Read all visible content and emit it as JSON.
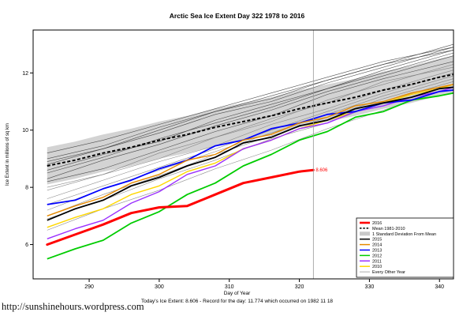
{
  "page": {
    "title": "Arctic Sea Ice Extent Day 322 1978 to 2016",
    "xlabel": "Day of Year",
    "ylabel": "Ice Extent in millions of sq km",
    "footer": "Today's Ice Extent: 8.606  - Record for the day: 11.774 which occurred on 1982 11 18",
    "watermark": "http://sunshinehours.wordpress.com"
  },
  "chart_data": {
    "type": "line",
    "title": "Arctic Sea Ice Extent Day 322 1978 to 2016",
    "xlabel": "Day of Year",
    "ylabel": "Ice Extent in millions of sq km",
    "xlim": [
      282,
      342
    ],
    "ylim": [
      4.8,
      13.5
    ],
    "xticks": [
      290,
      300,
      310,
      320,
      330,
      340
    ],
    "yticks": [
      6,
      8,
      10,
      12
    ],
    "grid": false,
    "legend_position": "bottom-right",
    "vline_x": 322,
    "annotation": {
      "text": "8.606",
      "x": 322,
      "y": 8.606,
      "color": "#ff0000"
    },
    "std_dev": 0.65,
    "band_color": "#d3d3d3",
    "mean": {
      "name": "Mean 1981-2010",
      "color": "#000000",
      "dashed": true,
      "x": [
        284,
        288,
        292,
        296,
        300,
        304,
        308,
        312,
        316,
        320,
        324,
        328,
        332,
        336,
        340,
        342
      ],
      "values": [
        8.75,
        8.95,
        9.2,
        9.4,
        9.65,
        9.85,
        10.1,
        10.3,
        10.5,
        10.75,
        10.95,
        11.15,
        11.4,
        11.6,
        11.85,
        11.95
      ]
    },
    "series": [
      {
        "name": "2010",
        "color": "#ffd700",
        "width": 1.4,
        "x": [
          284,
          288,
          292,
          296,
          300,
          304,
          308,
          312,
          316,
          320,
          324,
          328,
          332,
          336,
          340,
          342
        ],
        "values": [
          6.6,
          6.95,
          7.25,
          7.75,
          8.05,
          8.55,
          8.85,
          9.35,
          9.65,
          10.05,
          10.35,
          10.65,
          10.95,
          11.25,
          11.45,
          11.6
        ]
      },
      {
        "name": "2011",
        "color": "#9b30ff",
        "width": 1.4,
        "x": [
          284,
          288,
          292,
          296,
          300,
          304,
          308,
          312,
          316,
          320,
          324,
          328,
          332,
          336,
          340,
          342
        ],
        "values": [
          6.2,
          6.55,
          6.85,
          7.45,
          7.85,
          8.45,
          8.75,
          9.35,
          9.65,
          10.05,
          10.25,
          10.65,
          10.85,
          11.15,
          11.35,
          11.5
        ]
      },
      {
        "name": "2012",
        "color": "#00cc00",
        "width": 1.8,
        "x": [
          284,
          288,
          292,
          296,
          300,
          304,
          308,
          312,
          316,
          320,
          324,
          328,
          332,
          336,
          340,
          342
        ],
        "values": [
          5.5,
          5.85,
          6.15,
          6.75,
          7.15,
          7.75,
          8.15,
          8.75,
          9.15,
          9.65,
          9.95,
          10.45,
          10.65,
          11.05,
          11.2,
          11.3
        ]
      },
      {
        "name": "2013",
        "color": "#0000ff",
        "width": 1.8,
        "x": [
          284,
          288,
          292,
          296,
          300,
          304,
          308,
          312,
          316,
          320,
          324,
          328,
          332,
          336,
          340,
          342
        ],
        "values": [
          7.4,
          7.55,
          7.95,
          8.25,
          8.65,
          8.95,
          9.45,
          9.65,
          10.05,
          10.25,
          10.55,
          10.65,
          10.95,
          11.05,
          11.35,
          11.4
        ]
      },
      {
        "name": "2014",
        "color": "#e68a00",
        "width": 1.4,
        "x": [
          284,
          288,
          292,
          296,
          300,
          304,
          308,
          312,
          316,
          320,
          324,
          328,
          332,
          336,
          340,
          342
        ],
        "values": [
          7.0,
          7.35,
          7.65,
          8.15,
          8.45,
          8.95,
          9.15,
          9.65,
          9.85,
          10.25,
          10.45,
          10.85,
          11.0,
          11.3,
          11.5,
          11.6
        ]
      },
      {
        "name": "2015",
        "color": "#000000",
        "width": 1.8,
        "x": [
          284,
          288,
          292,
          296,
          300,
          304,
          308,
          312,
          316,
          320,
          324,
          328,
          332,
          336,
          340,
          342
        ],
        "values": [
          6.85,
          7.25,
          7.55,
          8.05,
          8.35,
          8.75,
          9.05,
          9.55,
          9.75,
          10.15,
          10.35,
          10.75,
          10.95,
          11.15,
          11.45,
          11.5
        ]
      },
      {
        "name": "2016",
        "color": "#ff0000",
        "width": 3,
        "x": [
          284,
          288,
          292,
          296,
          300,
          304,
          308,
          312,
          316,
          320,
          322
        ],
        "values": [
          6.0,
          6.35,
          6.7,
          7.1,
          7.3,
          7.35,
          7.75,
          8.15,
          8.35,
          8.55,
          8.606
        ]
      }
    ],
    "background_series": {
      "name": "Every Other Year",
      "color": "#555555",
      "x": [
        284,
        292,
        300,
        308,
        316,
        324,
        332,
        342
      ],
      "lines": [
        [
          8.3,
          8.95,
          9.5,
          10.15,
          10.7,
          11.35,
          11.9,
          12.6
        ],
        [
          8.0,
          8.45,
          9.2,
          9.75,
          10.3,
          11.05,
          11.6,
          12.3
        ],
        [
          8.6,
          9.15,
          9.6,
          10.35,
          10.9,
          11.45,
          12.1,
          12.8
        ],
        [
          7.6,
          8.25,
          8.9,
          9.45,
          10.2,
          10.75,
          11.4,
          12.1
        ],
        [
          8.9,
          9.35,
          10.0,
          10.65,
          11.1,
          11.75,
          12.3,
          13.0
        ],
        [
          7.2,
          7.95,
          8.6,
          9.25,
          9.9,
          10.55,
          11.2,
          11.9
        ],
        [
          8.2,
          8.65,
          9.3,
          9.95,
          10.5,
          11.25,
          11.8,
          12.4
        ],
        [
          7.9,
          8.45,
          9.0,
          9.75,
          10.4,
          10.95,
          11.7,
          12.2
        ],
        [
          9.2,
          9.65,
          10.2,
          10.75,
          11.3,
          11.85,
          12.4,
          12.9
        ],
        [
          6.9,
          7.55,
          8.3,
          8.95,
          9.7,
          10.25,
          11.0,
          11.7
        ],
        [
          8.5,
          9.05,
          9.7,
          10.25,
          10.8,
          11.45,
          12.0,
          12.7
        ],
        [
          7.4,
          8.05,
          8.7,
          9.35,
          10.0,
          10.65,
          11.3,
          12.0
        ],
        [
          8.8,
          9.35,
          9.9,
          10.55,
          11.0,
          11.65,
          12.2,
          12.9
        ],
        [
          6.5,
          7.25,
          7.9,
          8.65,
          9.3,
          10.05,
          10.7,
          11.5
        ],
        [
          9.0,
          9.45,
          10.1,
          10.65,
          11.2,
          11.75,
          12.3,
          12.8
        ],
        [
          7.0,
          7.75,
          8.4,
          9.15,
          9.8,
          10.45,
          11.1,
          11.8
        ]
      ]
    },
    "legend": [
      {
        "label": "2016",
        "color": "#ff0000",
        "style": "thick"
      },
      {
        "label": "Mean 1981-2010",
        "color": "#000000",
        "style": "dashed"
      },
      {
        "label": "1 Standard Deviation From Mean",
        "color": "#c9c9c9",
        "style": "patch"
      },
      {
        "label": "2015",
        "color": "#000000",
        "style": "line"
      },
      {
        "label": "2014",
        "color": "#e68a00",
        "style": "line"
      },
      {
        "label": "2013",
        "color": "#0000ff",
        "style": "line"
      },
      {
        "label": "2012",
        "color": "#00cc00",
        "style": "line"
      },
      {
        "label": "2011",
        "color": "#9b30ff",
        "style": "line"
      },
      {
        "label": "2010",
        "color": "#ffd700",
        "style": "line"
      },
      {
        "label": "Every Other Year",
        "color": "#888888",
        "style": "thin"
      }
    ]
  }
}
